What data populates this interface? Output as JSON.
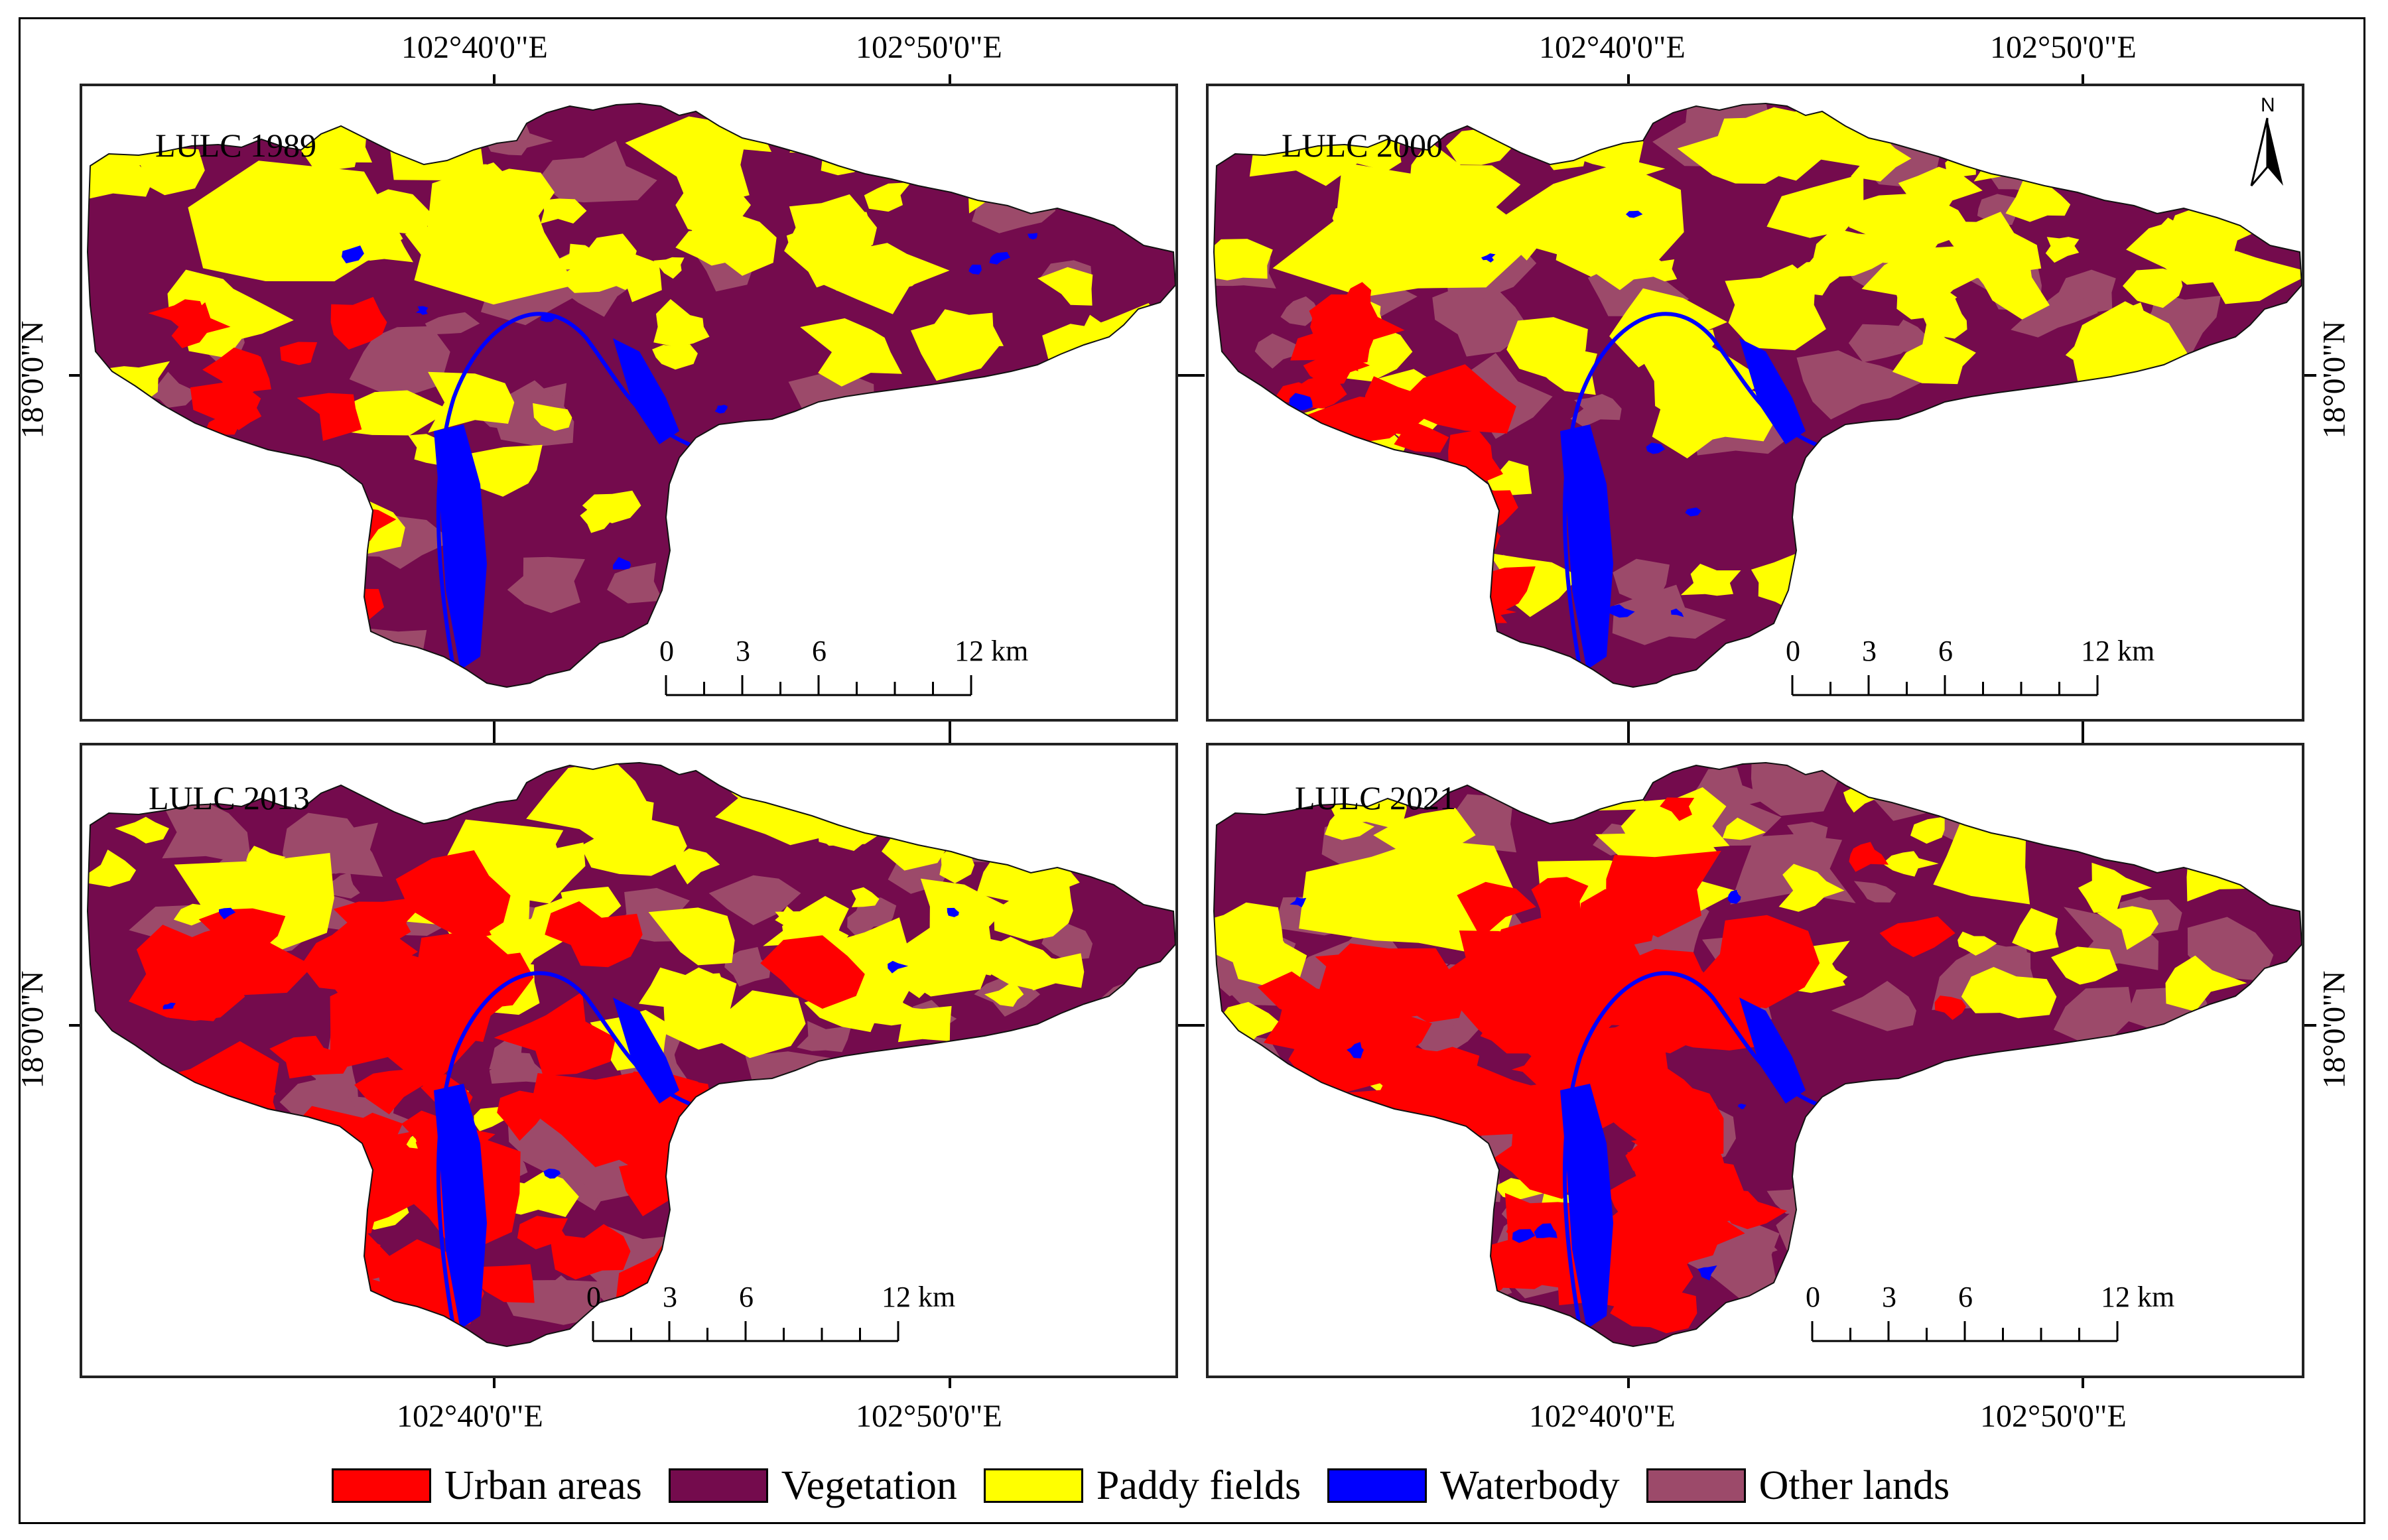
{
  "figure": {
    "coordinates": {
      "lon_west": "102°40'0\"E",
      "lon_east": "102°50'0\"E",
      "lat": "18°0'0\"N"
    },
    "north_arrow": "N",
    "panels": [
      {
        "title": "LULC 1989"
      },
      {
        "title": "LULC 2000"
      },
      {
        "title": "LULC 2013"
      },
      {
        "title": "LULC 2021"
      }
    ],
    "scale_bar": {
      "labels": [
        "0",
        "3",
        "6",
        "12 km"
      ]
    },
    "legend": [
      {
        "label": "Urban areas",
        "color": "#ff0000"
      },
      {
        "label": "Vegetation",
        "color": "#740b4d"
      },
      {
        "label": "Paddy fields",
        "color": "#ffff00"
      },
      {
        "label": "Waterbody",
        "color": "#0000ff"
      },
      {
        "label": "Other lands",
        "color": "#9c4a6a"
      }
    ],
    "colors": {
      "urban": "#ff0000",
      "vegetation": "#740b4d",
      "paddy": "#ffff00",
      "water": "#0000ff",
      "other": "#9c4a6a"
    }
  }
}
